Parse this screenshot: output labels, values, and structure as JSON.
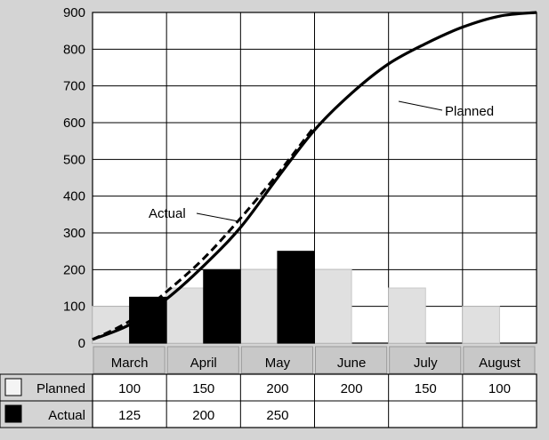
{
  "chart_data": {
    "type": "bar",
    "categories": [
      "March",
      "April",
      "May",
      "June",
      "July",
      "August"
    ],
    "series": [
      {
        "name": "Planned",
        "values": [
          100,
          150,
          200,
          200,
          150,
          100
        ],
        "color": "#e0e0e0"
      },
      {
        "name": "Actual",
        "values": [
          125,
          200,
          250,
          null,
          null,
          null
        ],
        "color": "#000000"
      }
    ],
    "cumulative_lines": [
      {
        "label": "Planned",
        "style": "solid",
        "points": [
          [
            0,
            10
          ],
          [
            0.5,
            50
          ],
          [
            1,
            120
          ],
          [
            1.5,
            210
          ],
          [
            2,
            315
          ],
          [
            2.5,
            450
          ],
          [
            3,
            580
          ],
          [
            3.5,
            680
          ],
          [
            4,
            760
          ],
          [
            4.5,
            815
          ],
          [
            5,
            860
          ],
          [
            5.5,
            890
          ],
          [
            6,
            900
          ]
        ]
      },
      {
        "label": "Actual",
        "style": "dashed",
        "points": [
          [
            0,
            10
          ],
          [
            0.5,
            60
          ],
          [
            1,
            140
          ],
          [
            1.5,
            230
          ],
          [
            2,
            340
          ],
          [
            2.5,
            460
          ],
          [
            3,
            590
          ]
        ]
      }
    ],
    "yticks": [
      0,
      100,
      200,
      300,
      400,
      500,
      600,
      700,
      800,
      900
    ],
    "ylim": [
      0,
      900
    ],
    "grid": true,
    "legend_table": {
      "rows": [
        {
          "label": "Planned",
          "values": [
            "100",
            "150",
            "200",
            "200",
            "150",
            "100"
          ]
        },
        {
          "label": "Actual",
          "values": [
            "125",
            "200",
            "250",
            "",
            "",
            ""
          ]
        }
      ]
    }
  }
}
